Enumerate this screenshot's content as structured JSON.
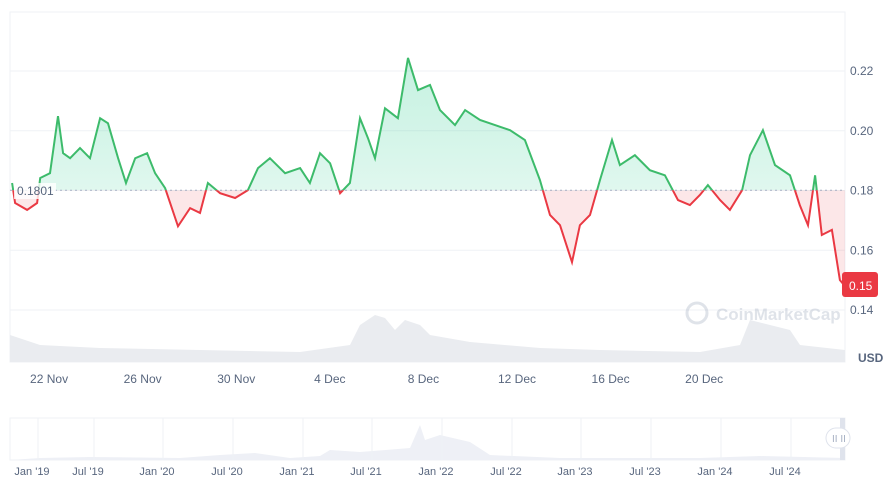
{
  "chart_data": {
    "type": "line",
    "title": "",
    "currency_label": "USD",
    "baseline": 0.1801,
    "baseline_label": "0.1801",
    "current_price_label": "0.15",
    "ylim": [
      0.137,
      0.237
    ],
    "y_ticks": [
      {
        "v": 0.22,
        "label": "0.22"
      },
      {
        "v": 0.2,
        "label": "0.20"
      },
      {
        "v": 0.18,
        "label": "0.18"
      },
      {
        "v": 0.16,
        "label": "0.16"
      },
      {
        "v": 0.14,
        "label": "0.14"
      }
    ],
    "x_ticks": [
      {
        "d": 0,
        "label": "22 Nov"
      },
      {
        "d": 4,
        "label": "26 Nov"
      },
      {
        "d": 8,
        "label": "30 Nov"
      },
      {
        "d": 12,
        "label": "4 Dec"
      },
      {
        "d": 16,
        "label": "8 Dec"
      },
      {
        "d": 20,
        "label": "12 Dec"
      },
      {
        "d": 24,
        "label": "16 Dec"
      },
      {
        "d": 28,
        "label": "20 Dec"
      }
    ],
    "xlim": [
      -1.67,
      34.02
    ],
    "x_unit": "days since 22 Nov",
    "series": [
      {
        "name": "Price",
        "points": [
          [
            -1.58,
            0.1825
          ],
          [
            -1.45,
            0.1758
          ],
          [
            -0.94,
            0.1735
          ],
          [
            -0.51,
            0.1758
          ],
          [
            -0.38,
            0.1842
          ],
          [
            0.04,
            0.1858
          ],
          [
            0.38,
            0.2049
          ],
          [
            0.6,
            0.1925
          ],
          [
            0.9,
            0.1908
          ],
          [
            1.32,
            0.1942
          ],
          [
            1.75,
            0.1908
          ],
          [
            2.18,
            0.2042
          ],
          [
            2.52,
            0.2025
          ],
          [
            2.95,
            0.1908
          ],
          [
            3.29,
            0.1825
          ],
          [
            3.68,
            0.1908
          ],
          [
            4.19,
            0.1925
          ],
          [
            4.53,
            0.1858
          ],
          [
            4.96,
            0.1808
          ],
          [
            5.51,
            0.168
          ],
          [
            6.03,
            0.1741
          ],
          [
            6.45,
            0.1725
          ],
          [
            6.79,
            0.1825
          ],
          [
            7.31,
            0.1791
          ],
          [
            7.95,
            0.1775
          ],
          [
            8.5,
            0.1801
          ],
          [
            8.93,
            0.1875
          ],
          [
            9.44,
            0.1908
          ],
          [
            10.09,
            0.1858
          ],
          [
            10.73,
            0.1875
          ],
          [
            11.15,
            0.1825
          ],
          [
            11.58,
            0.1925
          ],
          [
            12.01,
            0.1891
          ],
          [
            12.44,
            0.1791
          ],
          [
            12.86,
            0.1825
          ],
          [
            13.29,
            0.2042
          ],
          [
            13.63,
            0.1975
          ],
          [
            13.93,
            0.1908
          ],
          [
            14.36,
            0.2075
          ],
          [
            14.91,
            0.2042
          ],
          [
            15.34,
            0.2244
          ],
          [
            15.77,
            0.2136
          ],
          [
            16.28,
            0.2153
          ],
          [
            16.71,
            0.2069
          ],
          [
            17.35,
            0.2019
          ],
          [
            17.78,
            0.2069
          ],
          [
            18.42,
            0.2036
          ],
          [
            19.06,
            0.2019
          ],
          [
            19.7,
            0.2002
          ],
          [
            20.34,
            0.1969
          ],
          [
            20.98,
            0.1835
          ],
          [
            21.41,
            0.1718
          ],
          [
            21.84,
            0.1684
          ],
          [
            22.35,
            0.156
          ],
          [
            22.69,
            0.1684
          ],
          [
            23.12,
            0.1718
          ],
          [
            23.55,
            0.1835
          ],
          [
            24.06,
            0.1969
          ],
          [
            24.4,
            0.1885
          ],
          [
            25.04,
            0.1918
          ],
          [
            25.68,
            0.1868
          ],
          [
            26.32,
            0.1851
          ],
          [
            26.88,
            0.1768
          ],
          [
            27.39,
            0.1751
          ],
          [
            27.82,
            0.1785
          ],
          [
            28.16,
            0.1818
          ],
          [
            28.68,
            0.1768
          ],
          [
            29.1,
            0.1735
          ],
          [
            29.62,
            0.1801
          ],
          [
            29.96,
            0.1918
          ],
          [
            30.51,
            0.2002
          ],
          [
            31.03,
            0.1885
          ],
          [
            31.67,
            0.1851
          ],
          [
            32.09,
            0.1751
          ],
          [
            32.44,
            0.1684
          ],
          [
            32.74,
            0.1851
          ],
          [
            33.03,
            0.1651
          ],
          [
            33.46,
            0.1668
          ],
          [
            33.8,
            0.15
          ],
          [
            34.02,
            0.148
          ]
        ]
      }
    ],
    "navigator": {
      "x_ticks": [
        "Jan '19",
        "Jul '19",
        "Jan '20",
        "Jul '20",
        "Jan '21",
        "Jul '21",
        "Jan '22",
        "Jul '22",
        "Jan '23",
        "Jul '23",
        "Jan '24",
        "Jul '24"
      ]
    },
    "watermark": "CoinMarketCap",
    "colors": {
      "up": "#16c784",
      "up_line": "#3dbb6b",
      "down": "#ea3943",
      "grid": "#eff2f5",
      "axis_text": "#58667e",
      "volume": "#eaecf0"
    }
  }
}
